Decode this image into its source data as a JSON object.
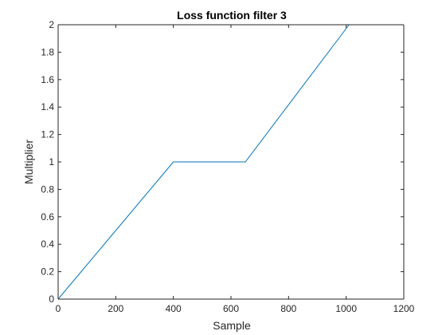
{
  "chart_data": {
    "type": "line",
    "title": "Loss function filter 3",
    "xlabel": "Sample",
    "ylabel": "Multiplier",
    "xlim": [
      0,
      1200
    ],
    "ylim": [
      0,
      2
    ],
    "xticks": [
      0,
      200,
      400,
      600,
      800,
      1000,
      1200
    ],
    "yticks": [
      0,
      0.2,
      0.4,
      0.6,
      0.8,
      1,
      1.2,
      1.4,
      1.6,
      1.8,
      2
    ],
    "xtick_labels": [
      "0",
      "200",
      "400",
      "600",
      "800",
      "1000",
      "1200"
    ],
    "ytick_labels": [
      "0",
      "0.2",
      "0.4",
      "0.6",
      "0.8",
      "1",
      "1.2",
      "1.4",
      "1.6",
      "1.8",
      "2"
    ],
    "grid": false,
    "box": true,
    "series": [
      {
        "color": "#0072bd",
        "x": [
          0,
          400,
          650,
          1010
        ],
        "y": [
          0,
          1,
          1,
          2
        ]
      }
    ]
  }
}
